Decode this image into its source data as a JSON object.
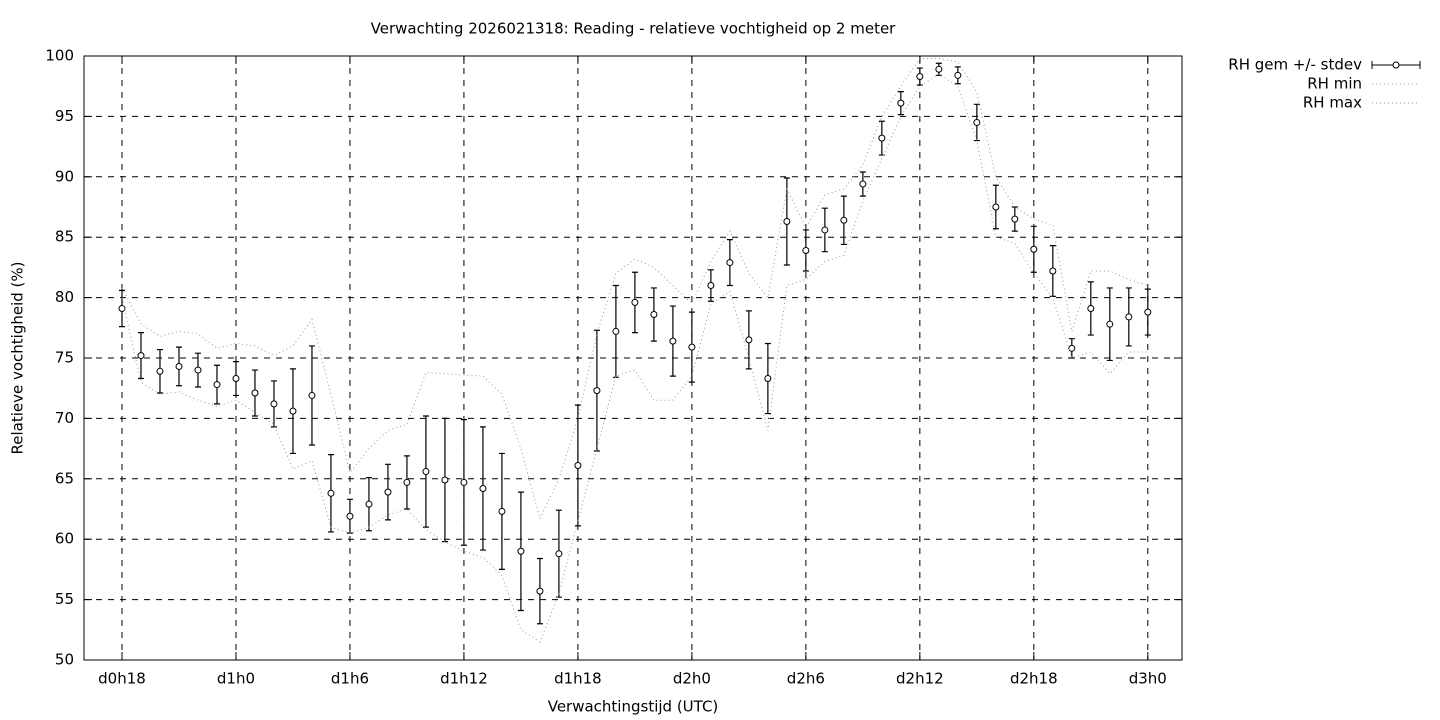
{
  "chart_data": {
    "type": "errorbar",
    "title": "Verwachting 2026021318: Reading - relatieve vochtigheid op 2 meter",
    "x_label": "Verwachtingstijd (UTC)",
    "y_label": "Relatieve vochtigheid (%)",
    "x": [
      18,
      19,
      20,
      21,
      22,
      23,
      24,
      25,
      26,
      27,
      28,
      29,
      30,
      31,
      32,
      33,
      34,
      35,
      36,
      37,
      38,
      39,
      40,
      41,
      42,
      43,
      44,
      45,
      46,
      47,
      48,
      49,
      50,
      51,
      52,
      53,
      54,
      55,
      56,
      57,
      58,
      59,
      60,
      61,
      62,
      63,
      64,
      65,
      66,
      67,
      68,
      69,
      70,
      71,
      72
    ],
    "series": [
      {
        "name": "RH gem +/- stdev",
        "color": "#000000",
        "values": [
          79.1,
          75.2,
          73.9,
          74.3,
          74.0,
          72.8,
          73.3,
          72.1,
          71.2,
          70.6,
          71.9,
          63.8,
          61.9,
          62.9,
          63.9,
          64.7,
          65.6,
          64.9,
          64.7,
          64.2,
          62.3,
          59.0,
          55.7,
          58.8,
          66.1,
          72.3,
          77.2,
          79.6,
          78.6,
          76.4,
          75.9,
          81.0,
          82.9,
          76.5,
          73.3,
          86.3,
          83.9,
          85.6,
          86.4,
          89.4,
          93.2,
          96.1,
          98.3,
          98.9,
          98.4,
          94.5,
          87.5,
          86.5,
          84.0,
          82.2,
          75.8,
          79.1,
          77.8,
          78.4,
          78.8
        ],
        "errors": [
          1.5,
          1.9,
          1.8,
          1.6,
          1.4,
          1.6,
          1.4,
          1.9,
          1.9,
          3.5,
          4.1,
          3.2,
          1.4,
          2.2,
          2.3,
          2.2,
          4.6,
          5.1,
          5.2,
          5.1,
          4.8,
          4.9,
          2.7,
          3.6,
          5.0,
          5.0,
          3.8,
          2.5,
          2.2,
          2.9,
          2.9,
          1.3,
          1.9,
          2.4,
          2.9,
          3.6,
          1.7,
          1.8,
          2.0,
          1.0,
          1.4,
          0.95,
          0.7,
          0.5,
          0.7,
          1.5,
          1.8,
          1.0,
          1.9,
          2.1,
          0.8,
          2.2,
          3.0,
          2.4,
          1.9
        ]
      },
      {
        "name": "RH min",
        "color": "#999999",
        "values": [
          80.0,
          73.0,
          72.0,
          72.2,
          71.5,
          71.0,
          71.5,
          70.5,
          69.5,
          65.8,
          66.5,
          61.0,
          60.5,
          61.0,
          62.0,
          62.5,
          60.8,
          59.8,
          59.0,
          58.5,
          57.0,
          52.5,
          51.5,
          55.5,
          61.5,
          67.5,
          73.5,
          74.0,
          71.5,
          71.5,
          73.5,
          79.5,
          80.5,
          75.0,
          69.0,
          81.0,
          81.5,
          83.0,
          83.5,
          88.0,
          91.5,
          95.0,
          97.5,
          98.5,
          97.5,
          93.0,
          85.0,
          84.5,
          82.0,
          80.0,
          75.0,
          75.5,
          73.7,
          75.5,
          75.5
        ]
      },
      {
        "name": "RH max",
        "color": "#999999",
        "values": [
          80.8,
          77.8,
          76.8,
          77.2,
          77.0,
          75.8,
          76.2,
          76.0,
          75.2,
          76.0,
          78.2,
          72.0,
          65.5,
          67.5,
          69.0,
          69.5,
          73.8,
          73.7,
          73.6,
          73.5,
          72.0,
          67.5,
          61.7,
          65.0,
          70.0,
          77.0,
          82.0,
          83.2,
          82.5,
          81.0,
          79.5,
          83.0,
          85.5,
          82.0,
          80.0,
          89.0,
          85.8,
          88.5,
          89.0,
          91.0,
          95.0,
          97.5,
          99.8,
          99.8,
          99.5,
          97.0,
          90.0,
          87.5,
          86.5,
          86.0,
          77.2,
          82.2,
          82.2,
          81.5,
          81.0
        ]
      }
    ],
    "xlim": [
      16,
      73.8
    ],
    "xticks": [
      {
        "value": 18,
        "label": "d0h18"
      },
      {
        "value": 24,
        "label": "d1h0"
      },
      {
        "value": 30,
        "label": "d1h6"
      },
      {
        "value": 36,
        "label": "d1h12"
      },
      {
        "value": 42,
        "label": "d1h18"
      },
      {
        "value": 48,
        "label": "d2h0"
      },
      {
        "value": 54,
        "label": "d2h6"
      },
      {
        "value": 60,
        "label": "d2h12"
      },
      {
        "value": 66,
        "label": "d2h18"
      },
      {
        "value": 72,
        "label": "d3h0"
      }
    ],
    "ylim": [
      50,
      100
    ],
    "yticks": [
      50,
      55,
      60,
      65,
      70,
      75,
      80,
      85,
      90,
      95,
      100
    ],
    "grid": true,
    "legend": "outside-top-right"
  }
}
